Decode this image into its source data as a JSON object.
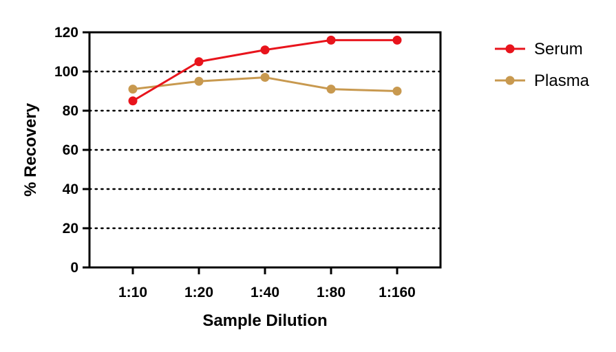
{
  "chart_data": {
    "type": "line",
    "title": "",
    "xlabel": "Sample Dilution",
    "ylabel": "% Recovery",
    "categories": [
      "1:10",
      "1:20",
      "1:40",
      "1:80",
      "1:160"
    ],
    "ylim": [
      0,
      120
    ],
    "yticks": [
      0,
      20,
      40,
      60,
      80,
      100,
      120
    ],
    "grid": "horizontal dotted",
    "legend_position": "right",
    "series": [
      {
        "name": "Serum",
        "color": "#e8141c",
        "values": [
          85,
          105,
          111,
          116,
          116
        ]
      },
      {
        "name": "Plasma",
        "color": "#c8994f",
        "values": [
          91,
          95,
          97,
          91,
          90
        ]
      }
    ]
  }
}
